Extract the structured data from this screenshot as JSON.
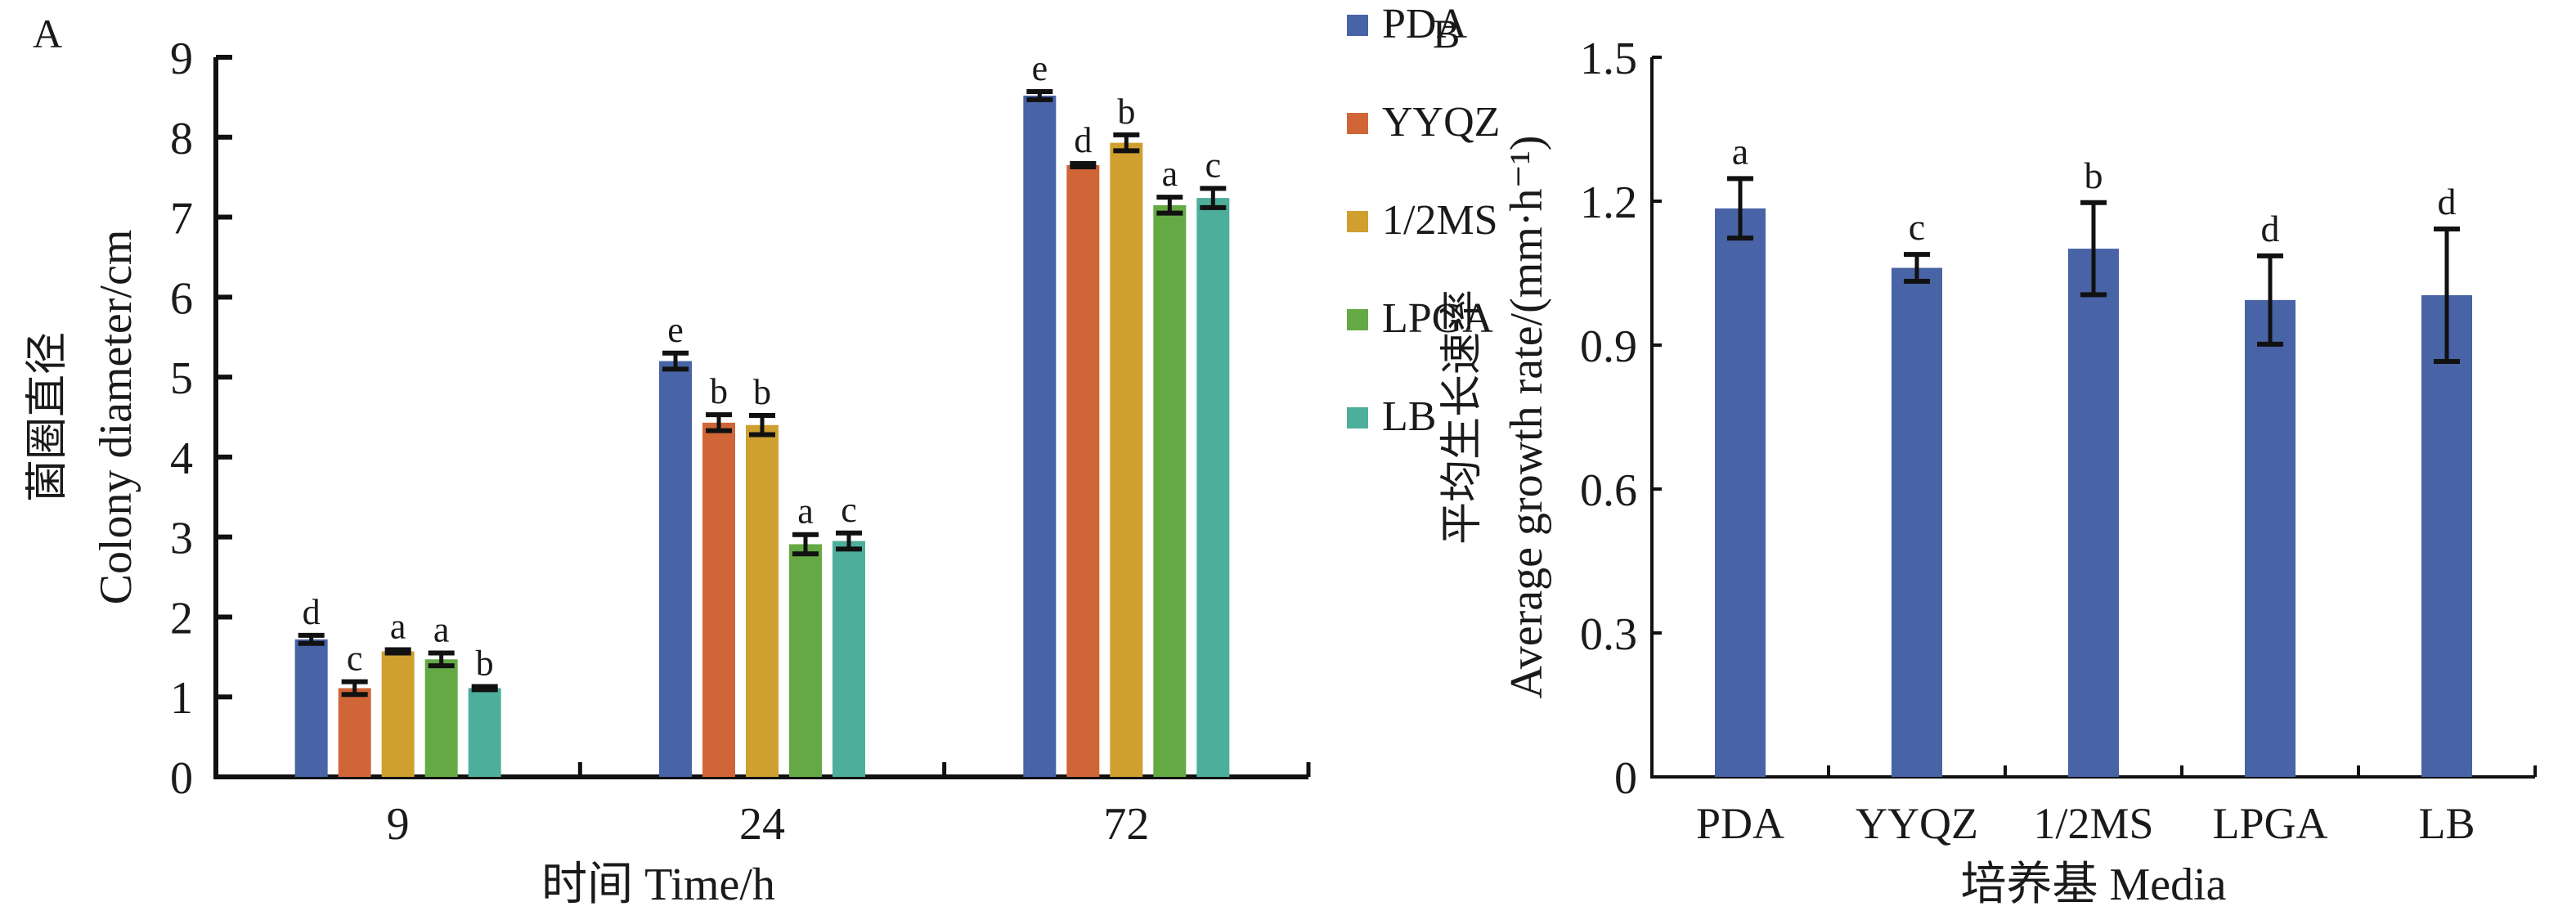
{
  "chart_data": [
    {
      "panel_label": "A",
      "type": "bar",
      "title": "",
      "xlabel": "时间 Time/h",
      "ylabel_cn": "菌圈直径",
      "ylabel": "Colony diameter/cm",
      "ylim": [
        0,
        9
      ],
      "yticks": [
        "0",
        "1",
        "2",
        "3",
        "4",
        "5",
        "6",
        "7",
        "8",
        "9"
      ],
      "categories": [
        "9",
        "24",
        "72"
      ],
      "legend_position": "top-right",
      "series": [
        {
          "name": "PDA",
          "color": "#4863a6",
          "values": [
            1.72,
            5.2,
            8.52
          ],
          "errors": [
            0.05,
            0.1,
            0.05
          ],
          "labels": [
            "d",
            "e",
            "e"
          ]
        },
        {
          "name": "YYQZ",
          "color": "#d06637",
          "values": [
            1.11,
            4.43,
            7.65
          ],
          "errors": [
            0.08,
            0.1,
            0.02
          ],
          "labels": [
            "c",
            "b",
            "d"
          ]
        },
        {
          "name": "1/2MS",
          "color": "#cf9f2f",
          "values": [
            1.57,
            4.4,
            7.93
          ],
          "errors": [
            0.02,
            0.12,
            0.1
          ],
          "labels": [
            "a",
            "b",
            "b"
          ]
        },
        {
          "name": "LPGA",
          "color": "#64a944",
          "values": [
            1.47,
            2.91,
            7.15
          ],
          "errors": [
            0.08,
            0.12,
            0.1
          ],
          "labels": [
            "a",
            "a",
            "a"
          ]
        },
        {
          "name": "LB",
          "color": "#4dae9b",
          "values": [
            1.11,
            2.95,
            7.24
          ],
          "errors": [
            0.02,
            0.1,
            0.12
          ],
          "labels": [
            "b",
            "c",
            "c"
          ]
        }
      ]
    },
    {
      "panel_label": "B",
      "type": "bar",
      "title": "",
      "xlabel": "培养基 Media",
      "ylabel_cn": "平均生长速率",
      "ylabel": "Average growth rate/(mm·h⁻¹)",
      "ylim": [
        0,
        1.5
      ],
      "yticks": [
        "0",
        "0.3",
        "0.6",
        "0.9",
        "1.2",
        "1.5"
      ],
      "categories": [
        "PDA",
        "YYQZ",
        "1/2MS",
        "LPGA",
        "LB"
      ],
      "series": [
        {
          "name": "Average growth rate",
          "color": "#4863a6",
          "values": [
            1.185,
            1.061,
            1.101,
            0.994,
            1.004
          ],
          "errors": [
            0.062,
            0.028,
            0.096,
            0.092,
            0.138
          ],
          "labels": [
            "a",
            "c",
            "b",
            "d",
            "d"
          ]
        }
      ]
    }
  ]
}
